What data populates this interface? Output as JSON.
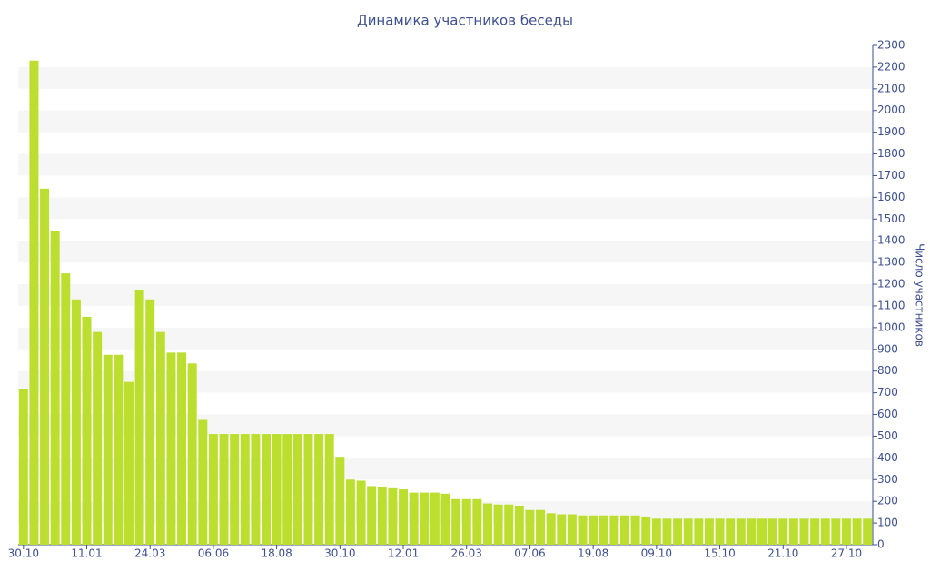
{
  "chart_data": {
    "type": "bar",
    "title": "Динамика участников беседы",
    "y_axis_label": "Число участников",
    "categories": [
      "30.10",
      null,
      null,
      null,
      null,
      null,
      "11.01",
      null,
      null,
      null,
      null,
      null,
      "24.03",
      null,
      null,
      null,
      null,
      null,
      "06.06",
      null,
      null,
      null,
      null,
      null,
      "18.08",
      null,
      null,
      null,
      null,
      null,
      "30.10",
      null,
      null,
      null,
      null,
      null,
      "12.01",
      null,
      null,
      null,
      null,
      null,
      "26.03",
      null,
      null,
      null,
      null,
      null,
      "07.06",
      null,
      null,
      null,
      null,
      null,
      "19.08",
      null,
      null,
      null,
      null,
      null,
      "09.10",
      null,
      null,
      null,
      null,
      null,
      "15.10",
      null,
      null,
      null,
      null,
      null,
      "21.10",
      null,
      null,
      null,
      null,
      null,
      "27.10",
      null,
      null
    ],
    "values": [
      715,
      2230,
      1640,
      1445,
      1250,
      1130,
      1050,
      980,
      875,
      875,
      750,
      1175,
      1130,
      980,
      885,
      885,
      835,
      575,
      510,
      510,
      510,
      510,
      510,
      510,
      510,
      510,
      510,
      510,
      510,
      510,
      405,
      300,
      295,
      270,
      265,
      260,
      255,
      240,
      240,
      240,
      235,
      210,
      210,
      210,
      190,
      185,
      185,
      180,
      160,
      160,
      145,
      140,
      140,
      135,
      135,
      135,
      135,
      135,
      135,
      130,
      120,
      120,
      120,
      120,
      120,
      120,
      120,
      120,
      120,
      120,
      120,
      120,
      120,
      120,
      120,
      120,
      120,
      120,
      120,
      120,
      120
    ],
    "color": "#bcdf2f",
    "ylim": [
      0,
      2300
    ],
    "yticks": [
      0,
      100,
      200,
      300,
      400,
      500,
      600,
      700,
      800,
      900,
      1000,
      1100,
      1200,
      1300,
      1400,
      1500,
      1600,
      1700,
      1800,
      1900,
      2000,
      2100,
      2200,
      2300
    ],
    "grid": true
  }
}
